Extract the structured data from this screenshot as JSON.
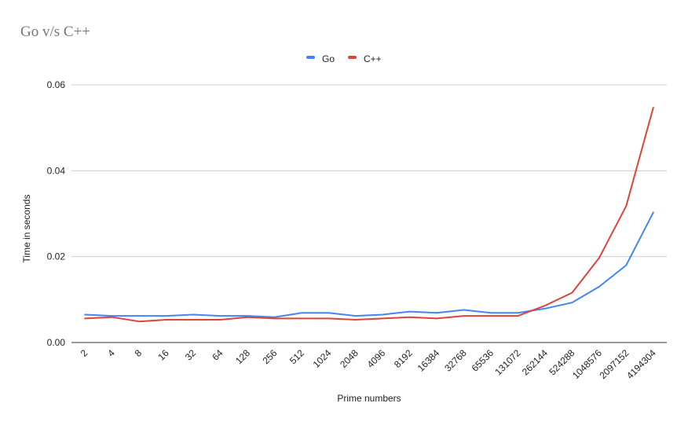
{
  "chart_data": {
    "type": "line",
    "title": "Go v/s C++",
    "xlabel": "Prime numbers",
    "ylabel": "Time in seconds",
    "ylim": [
      0,
      0.06
    ],
    "yticks": [
      "0.00",
      "0.02",
      "0.04",
      "0.06"
    ],
    "grid": true,
    "legend_position": "top-center",
    "categories": [
      "2",
      "4",
      "8",
      "16",
      "32",
      "64",
      "128",
      "256",
      "512",
      "1024",
      "2048",
      "4096",
      "8192",
      "16384",
      "32768",
      "65536",
      "131072",
      "262144",
      "524288",
      "1048576",
      "2097152",
      "4194304"
    ],
    "series": [
      {
        "name": "Go",
        "color": "#4285f4",
        "values": [
          0.0065,
          0.0062,
          0.0062,
          0.0062,
          0.0065,
          0.0062,
          0.0062,
          0.0059,
          0.0069,
          0.0069,
          0.0062,
          0.0065,
          0.0072,
          0.0069,
          0.0076,
          0.0069,
          0.0069,
          0.0079,
          0.0093,
          0.013,
          0.018,
          0.0303
        ]
      },
      {
        "name": "C++",
        "color": "#db4437",
        "values": [
          0.0056,
          0.0059,
          0.0049,
          0.0053,
          0.0053,
          0.0053,
          0.0059,
          0.0056,
          0.0056,
          0.0056,
          0.0053,
          0.0056,
          0.0059,
          0.0056,
          0.0062,
          0.0062,
          0.0062,
          0.0086,
          0.0116,
          0.0197,
          0.0318,
          0.0547
        ]
      }
    ]
  }
}
